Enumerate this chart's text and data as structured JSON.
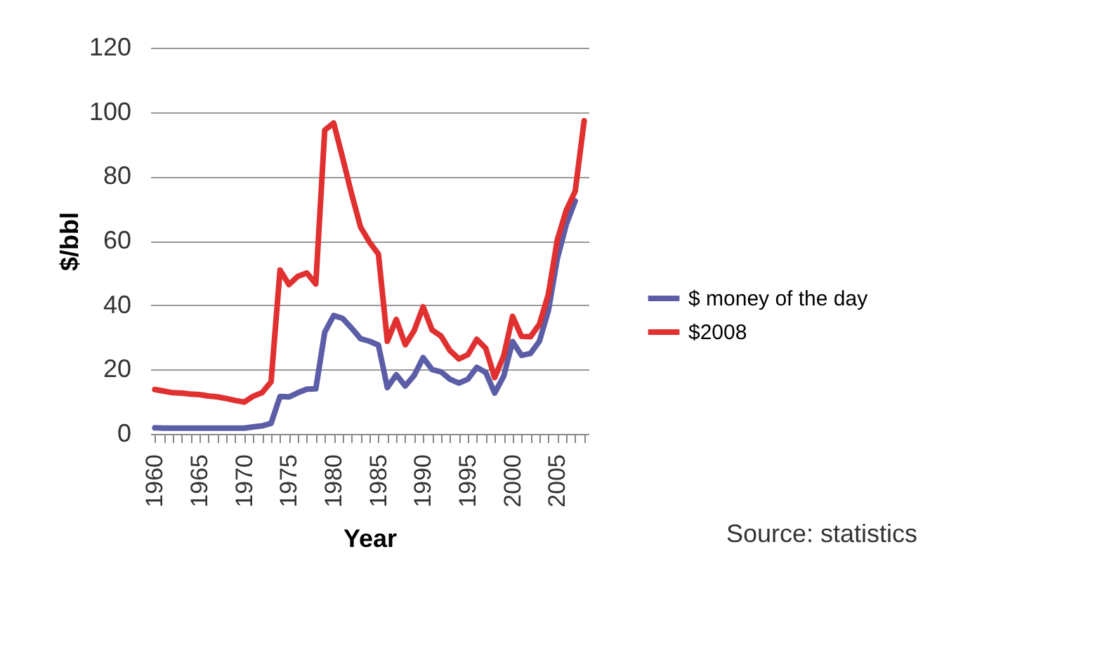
{
  "chart_data": {
    "type": "line",
    "xlabel": "Year",
    "ylabel": "$/bbl",
    "categories": [
      "1960",
      null,
      null,
      null,
      null,
      "1965",
      null,
      null,
      null,
      null,
      "1970",
      null,
      null,
      null,
      null,
      "1975",
      null,
      null,
      null,
      null,
      "1980",
      null,
      null,
      null,
      null,
      "1985",
      null,
      null,
      null,
      null,
      "1990",
      null,
      null,
      null,
      null,
      "1995",
      null,
      null,
      null,
      null,
      "2000",
      null,
      null,
      null,
      null,
      "2005",
      null,
      null,
      null
    ],
    "series": [
      {
        "name": "$ money of the day",
        "color": "#5b5ea6",
        "values": [
          1.9,
          1.8,
          1.8,
          1.8,
          1.8,
          1.8,
          1.8,
          1.8,
          1.8,
          1.8,
          1.8,
          2.2,
          2.5,
          3.3,
          11.6,
          11.5,
          12.8,
          13.9,
          14.0,
          31.6,
          36.8,
          35.9,
          32.9,
          29.6,
          28.8,
          27.6,
          14.4,
          18.4,
          14.9,
          18.2,
          23.7,
          20.0,
          19.3,
          17.0,
          15.8,
          17.0,
          20.7,
          19.1,
          12.7,
          17.9,
          28.7,
          24.4,
          25.0,
          28.8,
          38.3,
          54.5,
          65.1,
          72.4,
          null
        ]
      },
      {
        "name": "$2008",
        "color": "#e03030",
        "values": [
          13.8,
          13.3,
          12.8,
          12.7,
          12.4,
          12.2,
          11.8,
          11.5,
          11.0,
          10.4,
          9.9,
          11.7,
          12.8,
          16.2,
          50.9,
          46.4,
          49.0,
          50.0,
          46.6,
          94.4,
          96.6,
          85.8,
          74.6,
          64.3,
          59.6,
          55.9,
          28.8,
          35.6,
          27.7,
          32.1,
          39.5,
          32.3,
          30.4,
          25.9,
          23.3,
          24.6,
          29.4,
          26.6,
          17.5,
          24.2,
          36.5,
          30.3,
          30.2,
          34.1,
          43.4,
          60.3,
          69.5,
          75.4,
          97.3
        ]
      }
    ],
    "ylim": [
      0,
      120
    ],
    "yticks": [
      0,
      20,
      40,
      60,
      80,
      100,
      120
    ],
    "grid": "y",
    "legend": "right",
    "marker": "none",
    "line_style": "solid",
    "annotations": [
      "Source: statistics"
    ]
  }
}
